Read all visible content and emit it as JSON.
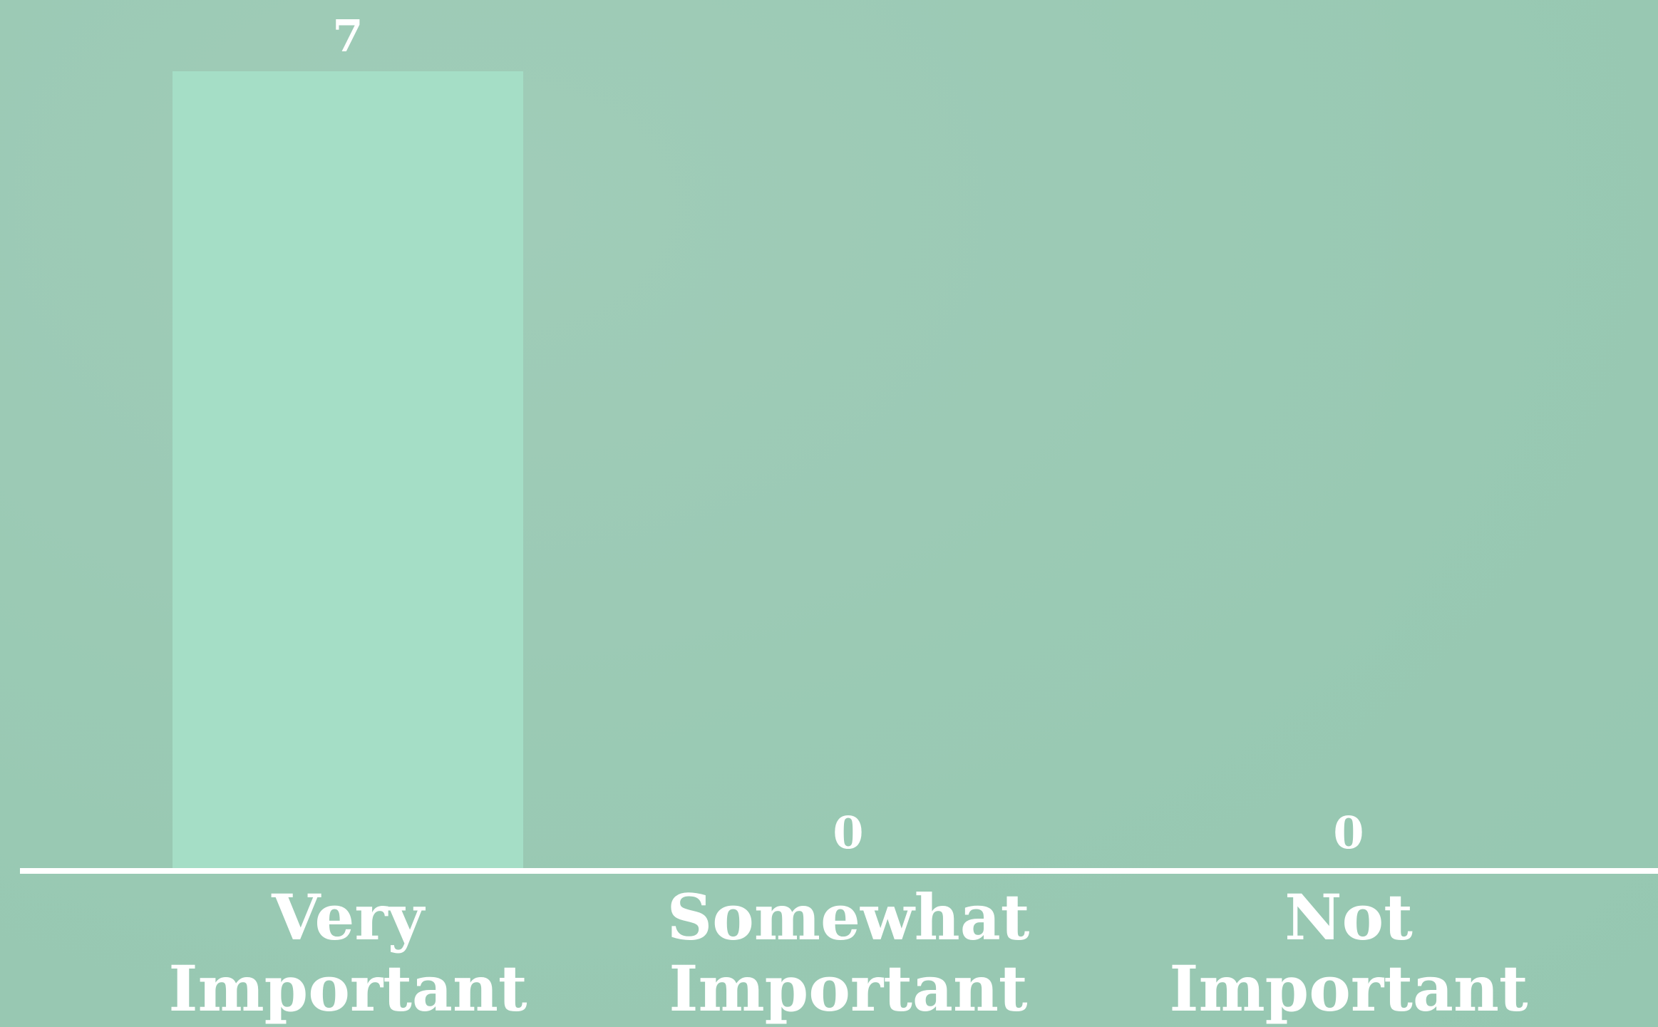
{
  "chart_data": {
    "type": "bar",
    "categories": [
      [
        "Very",
        "Important"
      ],
      [
        "Somewhat",
        "Important"
      ],
      [
        "Not",
        "Important"
      ]
    ],
    "values": [
      7,
      0,
      0
    ],
    "data_labels": [
      "7",
      "0",
      "0"
    ],
    "title": "",
    "xlabel": "",
    "ylabel": "",
    "ylim": [
      0,
      7
    ],
    "grid": false,
    "legend": "none"
  },
  "colors": {
    "background": "#9acbb5",
    "bar": "#a5dec6",
    "text": "#ffffff",
    "axis": "#ffffff"
  }
}
